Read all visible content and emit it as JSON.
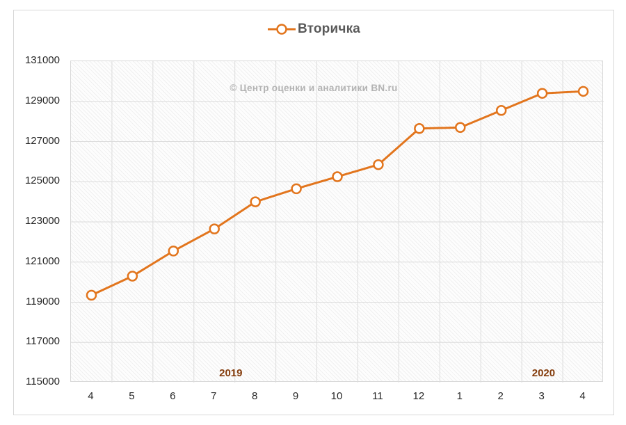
{
  "legend": {
    "label": "Вторичка"
  },
  "watermark": "© Центр оценки и аналитики BN.ru",
  "chart_data": {
    "type": "line",
    "title": "Вторичка",
    "categories": [
      "4",
      "5",
      "6",
      "7",
      "8",
      "9",
      "10",
      "11",
      "12",
      "1",
      "2",
      "3",
      "4"
    ],
    "series": [
      {
        "name": "Вторичка",
        "values": [
          119350,
          120300,
          121550,
          122650,
          124000,
          124650,
          125250,
          125850,
          127650,
          127700,
          128550,
          129400,
          129500
        ],
        "color": "#e2751d",
        "marker": "open-circle"
      }
    ],
    "year_labels": [
      {
        "text": "2019",
        "position": 0.3
      },
      {
        "text": "2020",
        "position": 0.887
      }
    ],
    "xlabel": "",
    "ylabel": "",
    "ylim": [
      115000,
      131000
    ],
    "ytick_step": 2000,
    "grid": true,
    "legend_position": "top-center",
    "plot_background": "diagonal-hatch",
    "colors": {
      "line": "#e2751d",
      "grid": "#dcdcdc",
      "title_text": "#595959",
      "watermark_text": "#b3b3b3",
      "year_text": "#843c0c",
      "tick_text": "#262626"
    }
  }
}
